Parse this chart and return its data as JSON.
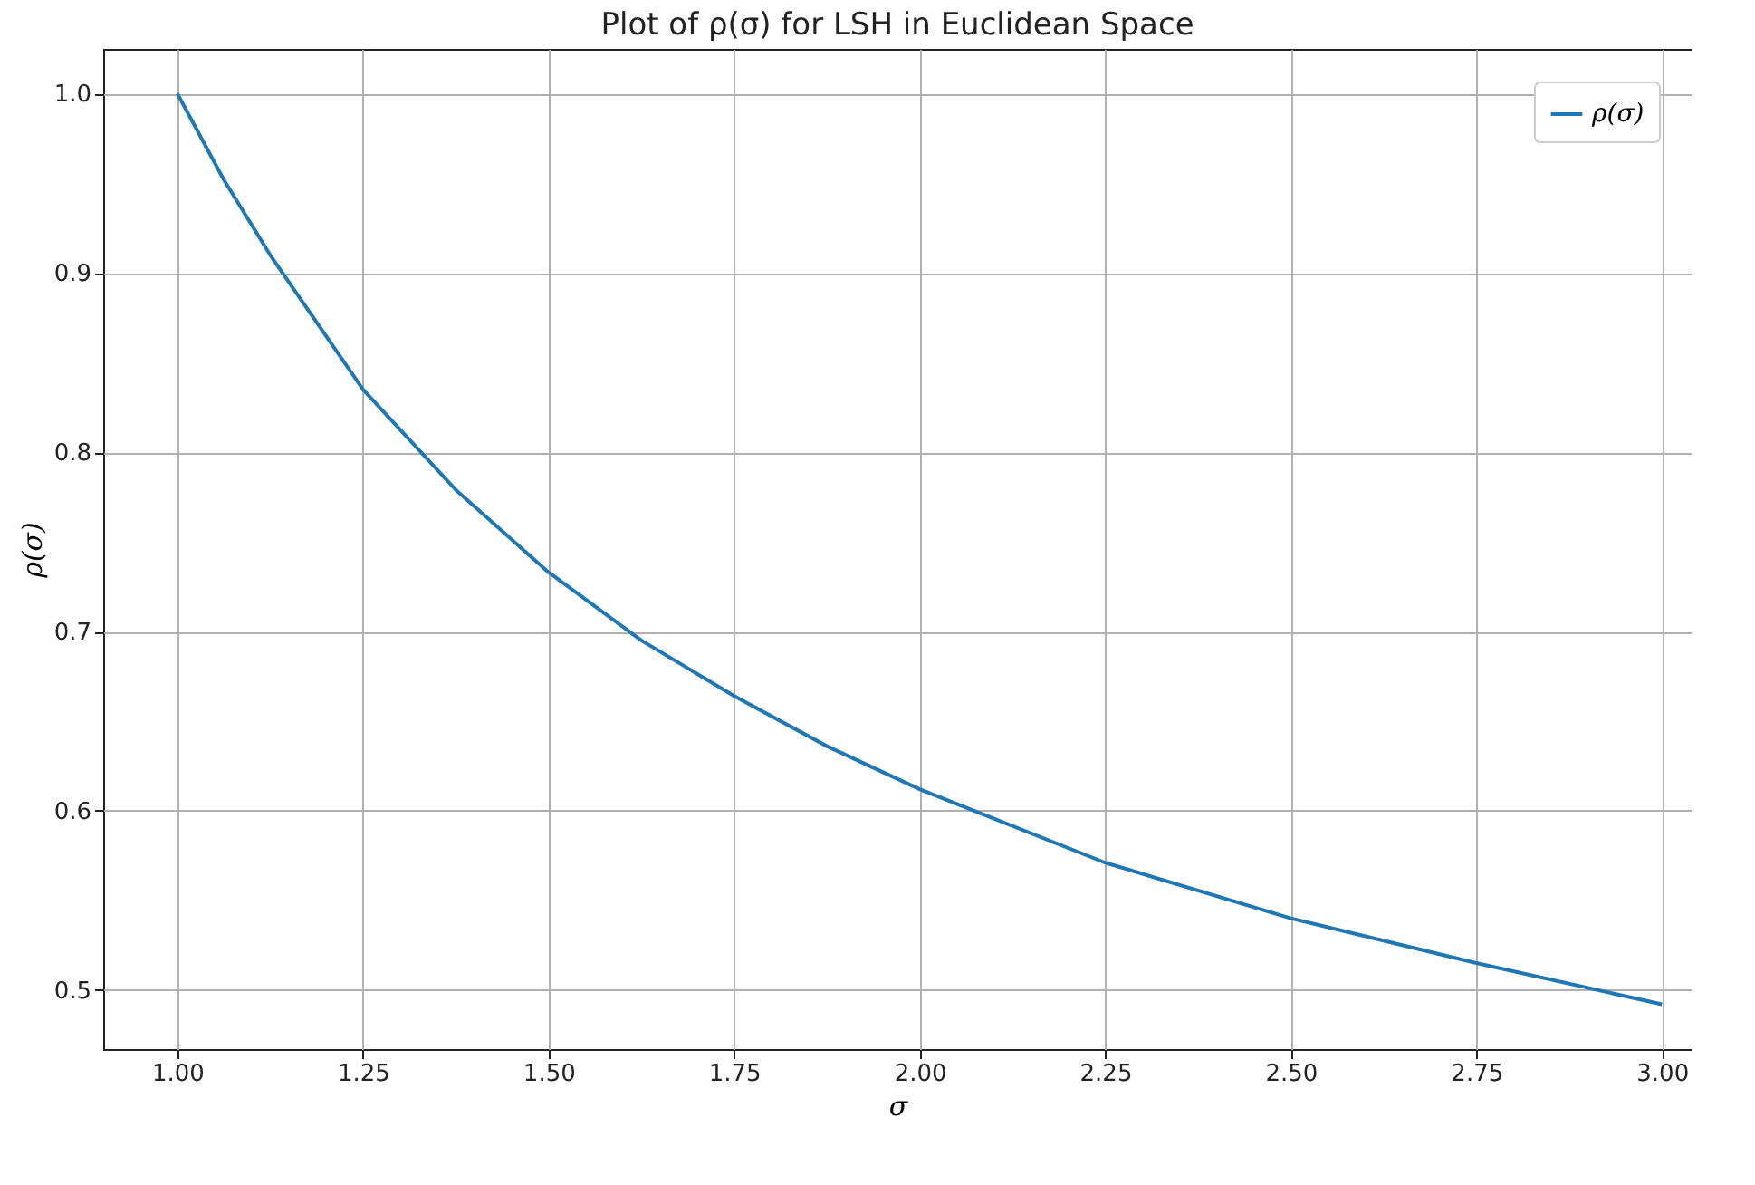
{
  "chart_data": {
    "type": "line",
    "title": "Plot of ρ(σ) for LSH in Euclidean Space",
    "xlabel": "σ",
    "ylabel": "ρ(σ)",
    "x": [
      1.0,
      1.0625,
      1.125,
      1.25,
      1.375,
      1.5,
      1.625,
      1.75,
      1.875,
      2.0,
      2.25,
      2.5,
      2.75,
      3.0
    ],
    "series": [
      {
        "name": "ρ(σ)",
        "color": "#1f77b4",
        "values": [
          1.0,
          0.952,
          0.91,
          0.835,
          0.779,
          0.733,
          0.695,
          0.664,
          0.636,
          0.612,
          0.571,
          0.54,
          0.515,
          0.492
        ]
      }
    ],
    "xlim": [
      0.9,
      3.04
    ],
    "ylim": [
      0.467,
      1.025
    ],
    "xticks": [
      {
        "value": 1,
        "label": "1.00"
      },
      {
        "value": 1.25,
        "label": "1.25"
      },
      {
        "value": 1.5,
        "label": "1.50"
      },
      {
        "value": 1.75,
        "label": "1.75"
      },
      {
        "value": 2,
        "label": "2.00"
      },
      {
        "value": 2.25,
        "label": "2.25"
      },
      {
        "value": 2.5,
        "label": "2.50"
      },
      {
        "value": 2.75,
        "label": "2.75"
      },
      {
        "value": 3,
        "label": "3.00"
      }
    ],
    "yticks": [
      0.5,
      0.6,
      0.7,
      0.8,
      0.9,
      {
        "value": 1,
        "label": "1.0"
      }
    ],
    "grid": true,
    "legend": "top right",
    "marker": "none",
    "line_style": "solid"
  }
}
